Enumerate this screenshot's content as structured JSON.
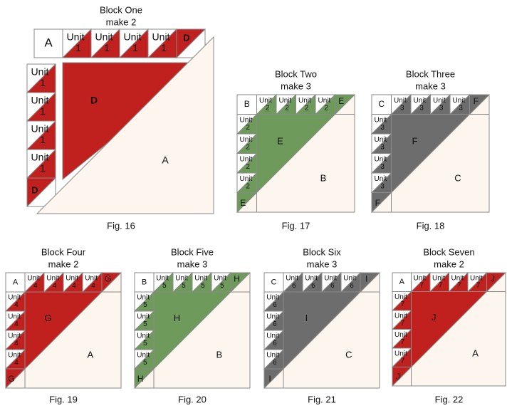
{
  "figures": [
    {
      "title": "Block One",
      "subtitle": "make 2",
      "caption": "Fig. 16",
      "corner": "A",
      "unit_word": "Unit",
      "unit_number": "1",
      "triangle": "D",
      "background": "A",
      "color": "#c0201e"
    },
    {
      "title": "Block Two",
      "subtitle": "make 3",
      "caption": "Fig. 17",
      "corner": "B",
      "unit_word": "Unit",
      "unit_number": "2",
      "triangle": "E",
      "background": "B",
      "color": "#6e9a5c"
    },
    {
      "title": "Block Three",
      "subtitle": "make 3",
      "caption": "Fig. 18",
      "corner": "C",
      "unit_word": "Unit",
      "unit_number": "3",
      "triangle": "F",
      "background": "C",
      "color": "#6d6d6d"
    },
    {
      "title": "Block Four",
      "subtitle": "make 2",
      "caption": "Fig. 19",
      "corner": "A",
      "unit_word": "Unit",
      "unit_number": "4",
      "triangle": "G",
      "background": "A",
      "color": "#c0201e"
    },
    {
      "title": "Block Five",
      "subtitle": "make 3",
      "caption": "Fig. 20",
      "corner": "B",
      "unit_word": "Unit",
      "unit_number": "5",
      "triangle": "H",
      "background": "B",
      "color": "#6e9a5c"
    },
    {
      "title": "Block Six",
      "subtitle": "make 3",
      "caption": "Fig. 21",
      "corner": "C",
      "unit_word": "Unit",
      "unit_number": "6",
      "triangle": "I",
      "background": "C",
      "color": "#6d6d6d"
    },
    {
      "title": "Block Seven",
      "subtitle": "make 2",
      "caption": "Fig. 22",
      "corner": "A",
      "unit_word": "Unit",
      "unit_number": "7",
      "triangle": "J",
      "background": "A",
      "color": "#c0201e"
    }
  ]
}
